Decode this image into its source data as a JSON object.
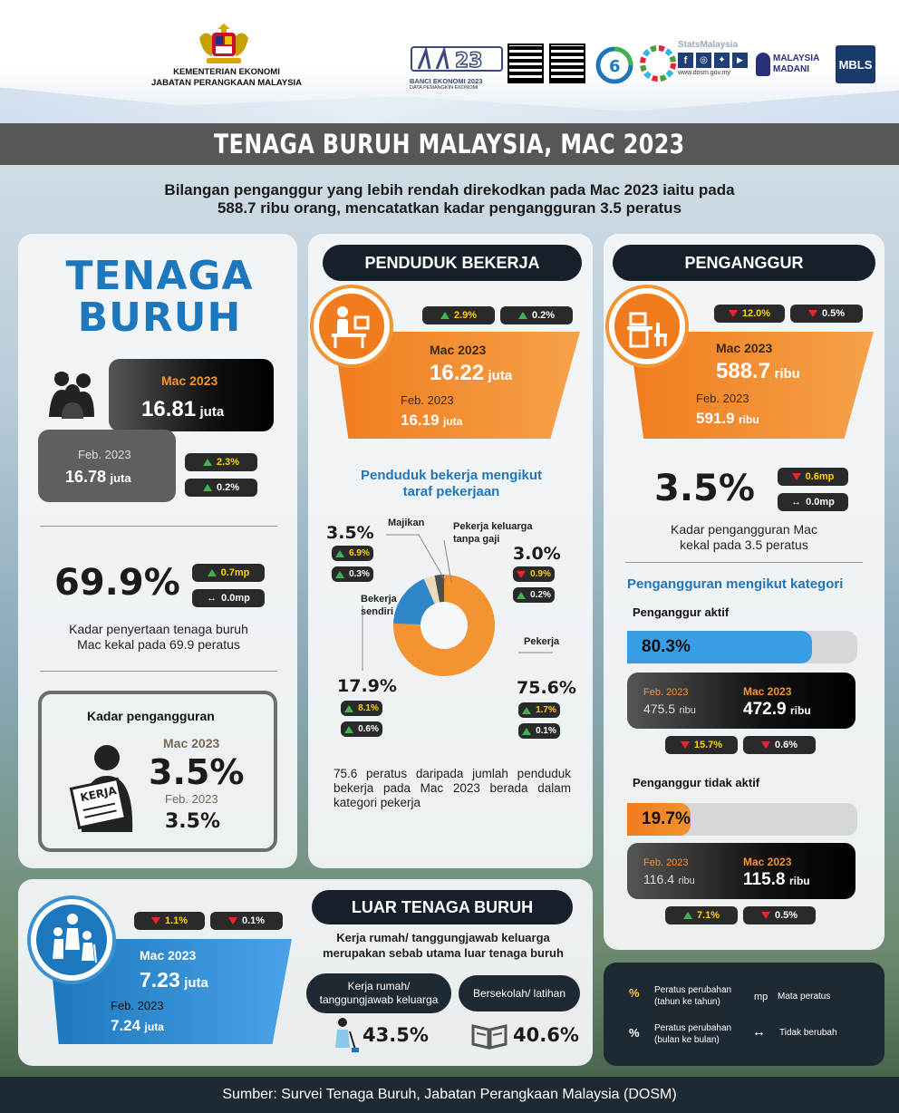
{
  "header": {
    "ministry_line1": "KEMENTERIAN EKONOMI",
    "ministry_line2": "JABATAN PERANGKAAN MALAYSIA",
    "banci_label": "BANCI EKONOMI 2023",
    "banci_sub": "DATA PEMANGKIN EKONOMI",
    "stats_label": "StatsMalaysia",
    "stats_url": "www.dosm.gov.my",
    "madani_label": "MALAYSIA MADANI",
    "mbls_label": "MBLS"
  },
  "title": "TENAGA BURUH MALAYSIA, MAC 2023",
  "subtitle_line1": "Bilangan penganggur yang lebih rendah direkodkan pada Mac 2023 iaitu pada",
  "subtitle_line2": "588.7 ribu orang, mencatatkan kadar pengangguran 3.5 peratus",
  "labour_force": {
    "heading_1": "TENAGA",
    "heading_2": "BURUH",
    "cur_label": "Mac 2023",
    "cur_value": "16.81",
    "cur_unit": "juta",
    "prev_label": "Feb. 2023",
    "prev_value": "16.78",
    "prev_unit": "juta",
    "yoy": "2.3%",
    "mom": "0.2%",
    "lfpr": "69.9%",
    "lfpr_yoy": "0.7mp",
    "lfpr_mom": "0.0mp",
    "lfpr_note_1": "Kadar penyertaan tenaga buruh",
    "lfpr_note_2": "Mac kekal pada 69.9 peratus",
    "ur_title": "Kadar pengangguran",
    "ur_cur_label": "Mac 2023",
    "ur_cur": "3.5%",
    "ur_prev_label": "Feb. 2023",
    "ur_prev": "3.5%",
    "kerja_label": "KERJA"
  },
  "employed": {
    "title": "PENDUDUK BEKERJA",
    "yoy": "2.9%",
    "mom": "0.2%",
    "cur_label": "Mac 2023",
    "cur_value": "16.22",
    "cur_unit": "juta",
    "prev_label": "Feb. 2023",
    "prev_value": "16.19",
    "prev_unit": "juta",
    "status_title_1": "Penduduk bekerja mengikut",
    "status_title_2": "taraf pekerjaan",
    "note": "75.6 peratus daripada jumlah penduduk bekerja pada Mac 2023 berada dalam kategori pekerja"
  },
  "chart_data": {
    "type": "pie",
    "categories": [
      "Pekerja",
      "Bekerja sendiri",
      "Majikan",
      "Pekerja keluarga tanpa gaji"
    ],
    "values": [
      75.6,
      17.9,
      3.5,
      3.0
    ],
    "labels": [
      {
        "name": "Majikan",
        "pct": "3.5%",
        "yoy": "6.9%",
        "yoy_dir": "up",
        "mom": "0.3%",
        "mom_dir": "up"
      },
      {
        "name_1": "Pekerja keluarga",
        "name_2": "tanpa gaji",
        "pct": "3.0%",
        "yoy": "0.9%",
        "yoy_dir": "down",
        "mom": "0.2%",
        "mom_dir": "up"
      },
      {
        "name_1": "Bekerja",
        "name_2": "sendiri",
        "pct": "17.9%",
        "yoy": "8.1%",
        "yoy_dir": "up",
        "mom": "0.6%",
        "mom_dir": "up"
      },
      {
        "name": "Pekerja",
        "pct": "75.6%",
        "yoy": "1.7%",
        "yoy_dir": "up",
        "mom": "0.1%",
        "mom_dir": "up"
      }
    ],
    "colors": [
      "#f39331",
      "#2e86c9",
      "#e9d9bd",
      "#4d4d4d"
    ]
  },
  "unemployed": {
    "title": "PENGANGGUR",
    "yoy": "12.0%",
    "mom": "0.5%",
    "cur_label": "Mac 2023",
    "cur_value": "588.7",
    "cur_unit": "ribu",
    "prev_label": "Feb. 2023",
    "prev_value": "591.9",
    "prev_unit": "ribu",
    "rate": "3.5%",
    "rate_yoy": "0.6mp",
    "rate_mom": "0.0mp",
    "rate_note_1": "Kadar pengangguran Mac",
    "rate_note_2": "kekal pada 3.5 peratus",
    "cat_title": "Pengangguran mengikut kategori",
    "active_label": "Penganggur aktif",
    "active_pct": "80.3%",
    "active_share": 80.3,
    "active_prev_label": "Feb. 2023",
    "active_prev_value": "475.5",
    "active_prev_unit": "ribu",
    "active_cur_label": "Mac 2023",
    "active_cur_value": "472.9",
    "active_cur_unit": "ribu",
    "active_yoy": "15.7%",
    "active_mom": "0.6%",
    "inactive_label": "Penganggur tidak aktif",
    "inactive_pct": "19.7%",
    "inactive_share": 19.7,
    "inactive_prev_label": "Feb. 2023",
    "inactive_prev_value": "116.4",
    "inactive_prev_unit": "ribu",
    "inactive_cur_label": "Mac 2023",
    "inactive_cur_value": "115.8",
    "inactive_cur_unit": "ribu",
    "inactive_yoy": "7.1%",
    "inactive_mom": "0.5%"
  },
  "outside": {
    "title": "LUAR TENAGA BURUH",
    "yoy": "1.1%",
    "mom": "0.1%",
    "cur_label": "Mac 2023",
    "cur_value": "7.23",
    "cur_unit": "juta",
    "prev_label": "Feb. 2023",
    "prev_value": "7.24",
    "prev_unit": "juta",
    "reason_1": "Kerja rumah/ tanggungjawab keluarga",
    "reason_2": "merupakan sebab utama luar tenaga buruh",
    "housework_1": "Kerja rumah/",
    "housework_2": "tanggungjawab keluarga",
    "housework_pct": "43.5%",
    "school": "Bersekolah/ latihan",
    "school_pct": "40.6%"
  },
  "legend": {
    "yoy_sym": "%",
    "yoy_1": "Peratus perubahan",
    "yoy_2": "(tahun ke tahun)",
    "mp_sym": "mp",
    "mp_text": "Mata peratus",
    "mom_sym": "%",
    "mom_1": "Peratus perubahan",
    "mom_2": "(bulan ke bulan)",
    "nc_sym": "↔",
    "nc_text": "Tidak berubah"
  },
  "footer": "Sumber: Survei Tenaga Buruh, Jabatan Perangkaan Malaysia (DOSM)"
}
